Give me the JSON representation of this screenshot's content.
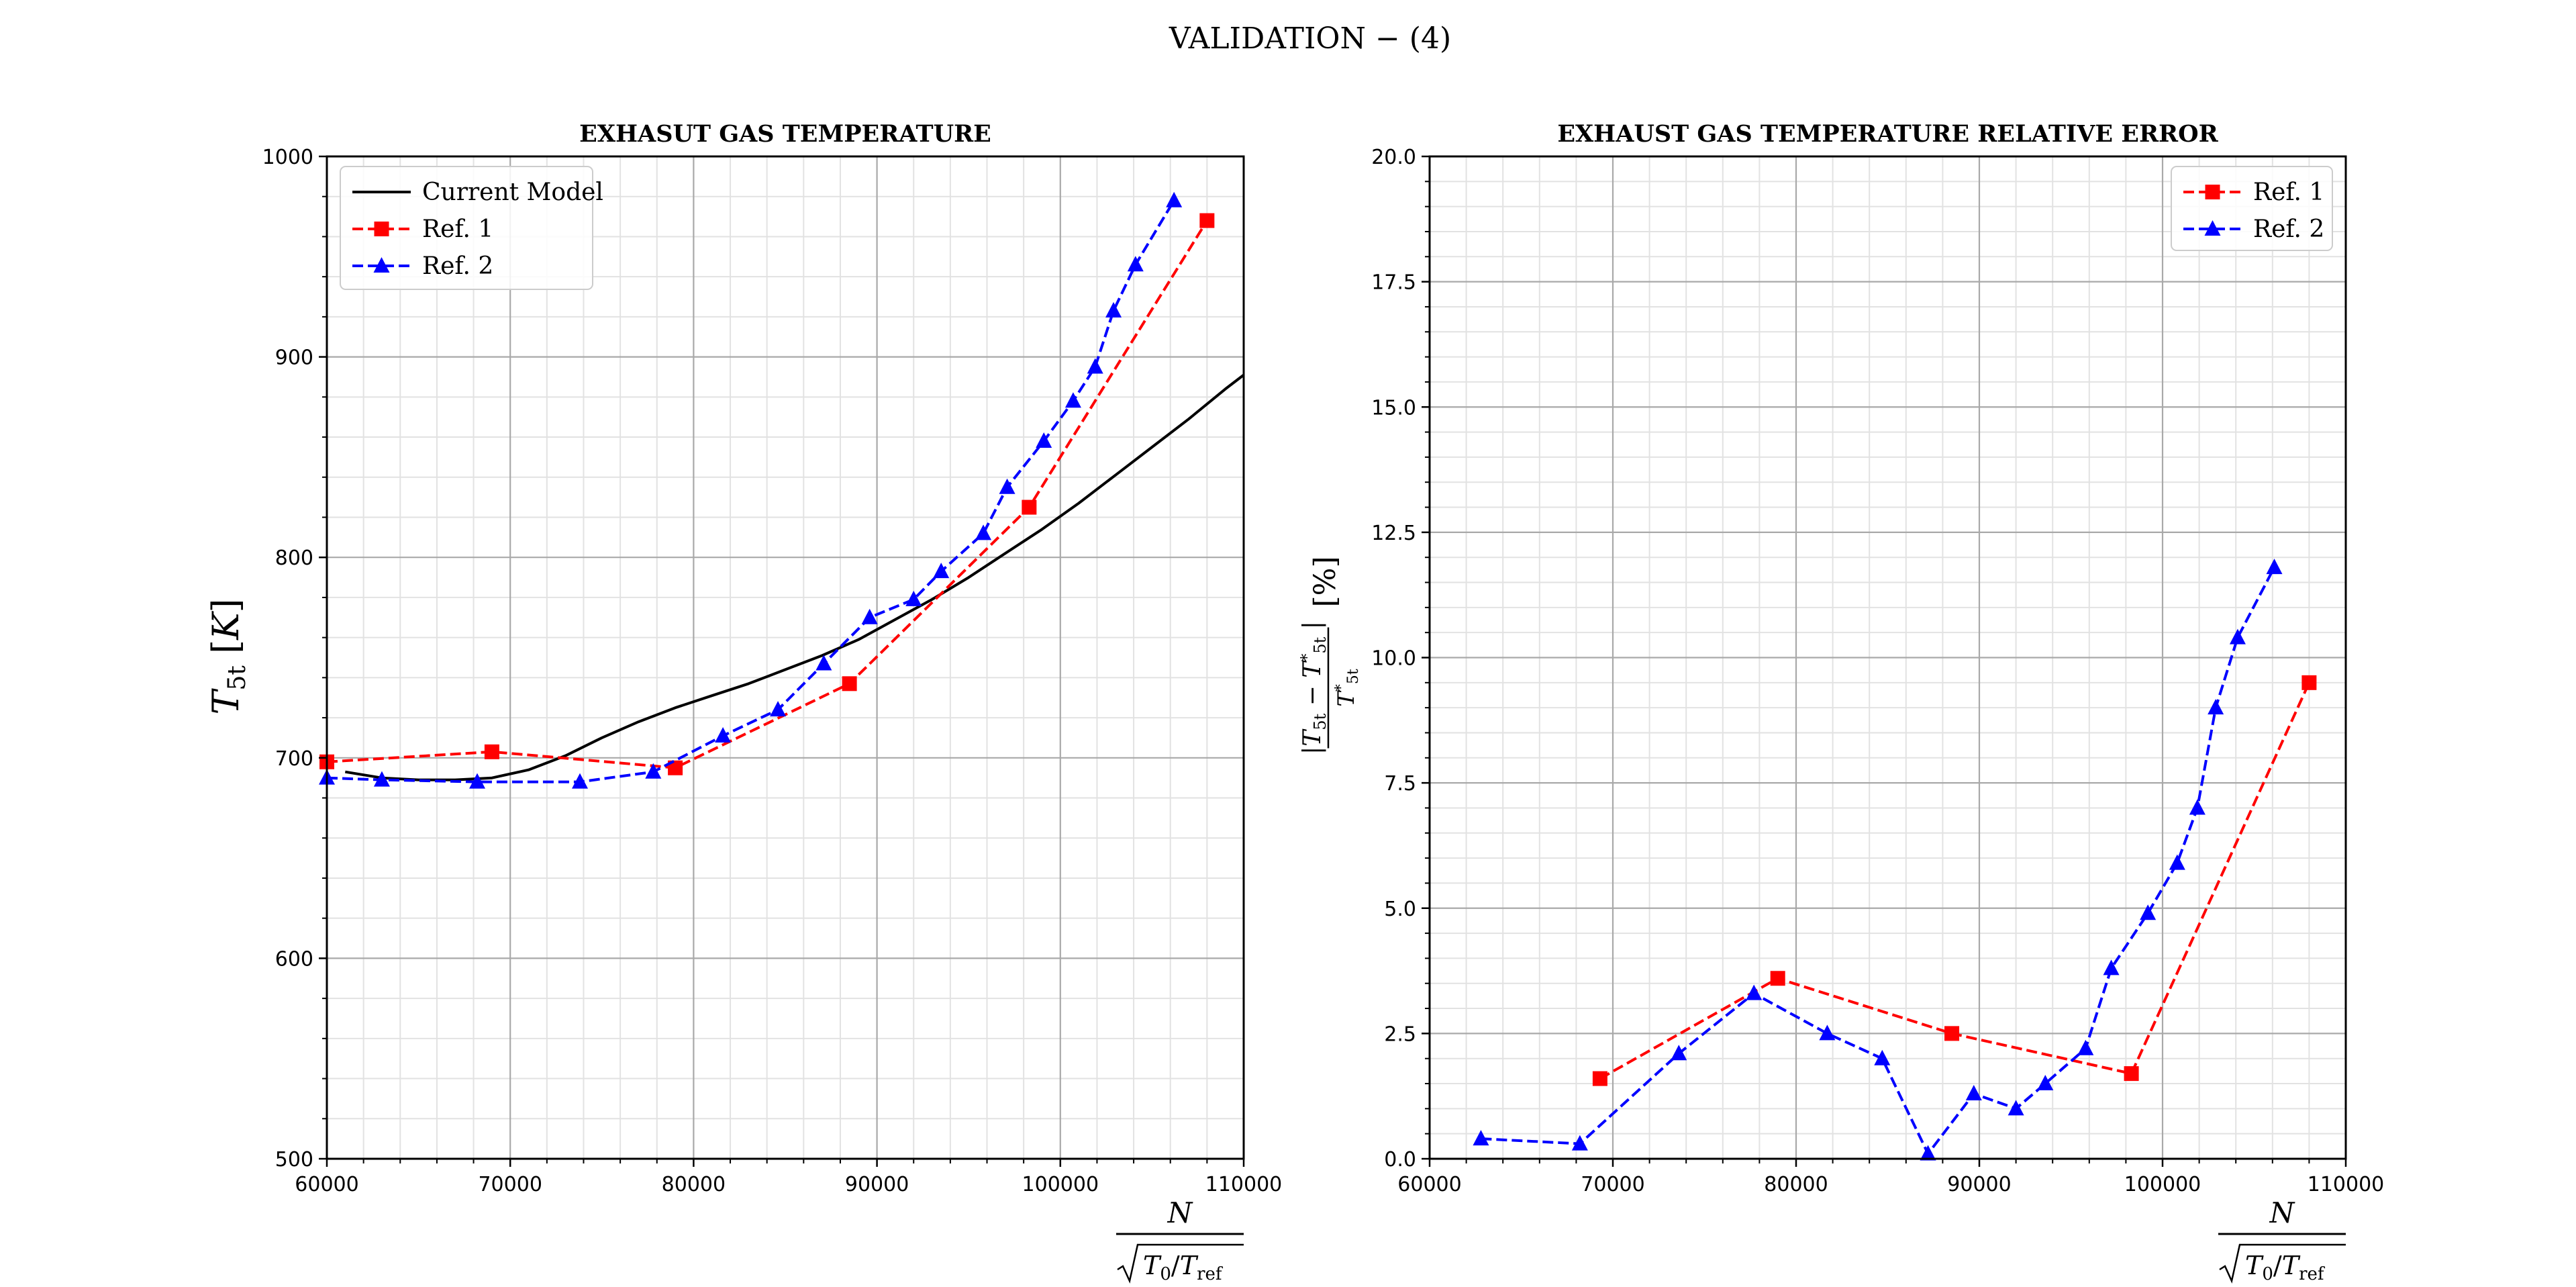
{
  "figure": {
    "title": "VALIDATION  − (4)"
  },
  "chart_data": [
    {
      "type": "line",
      "title": "EXHAUST GAS TEMPERATURE",
      "title_as_printed": "EXHASUT GAS TEMPERATURE",
      "xlabel": "N / √(T0/Tref)",
      "ylabel": "T5t [K]",
      "xlim": [
        60000,
        110000
      ],
      "ylim": [
        500,
        1000
      ],
      "x_ticks": [
        60000,
        70000,
        80000,
        90000,
        100000,
        110000
      ],
      "x_tick_labels": [
        "60000",
        "70000",
        "80000",
        "90000",
        "100000",
        "110000"
      ],
      "y_ticks": [
        500,
        600,
        700,
        800,
        900,
        1000
      ],
      "y_tick_labels": [
        "500",
        "600",
        "700",
        "800",
        "900",
        "1000"
      ],
      "grid": true,
      "legend": "top-left",
      "series": [
        {
          "name": "Current Model",
          "style": "solid",
          "marker": "none",
          "color": "#000000",
          "x": [
            61000,
            63000,
            65000,
            67000,
            69000,
            71000,
            73000,
            75000,
            77000,
            79000,
            81000,
            83000,
            85000,
            87000,
            89000,
            91000,
            93000,
            95000,
            97000,
            99000,
            101000,
            103000,
            105000,
            107000,
            109000,
            110000
          ],
          "y": [
            693,
            690,
            689,
            689,
            690,
            694,
            701,
            710,
            718,
            725,
            731,
            737,
            744,
            751,
            759,
            769,
            779,
            790,
            802,
            814,
            827,
            841,
            855,
            869,
            884,
            891
          ]
        },
        {
          "name": "Ref. 1",
          "style": "dashed",
          "marker": "square",
          "color": "#ff0000",
          "x": [
            60000,
            69000,
            79000,
            88500,
            98300,
            108000
          ],
          "y": [
            698,
            703,
            695,
            737,
            825,
            968
          ]
        },
        {
          "name": "Ref. 2",
          "style": "dashed",
          "marker": "triangle",
          "color": "#0000ff",
          "x": [
            60000,
            63000,
            68200,
            73800,
            77800,
            81600,
            84600,
            87100,
            89600,
            92000,
            93500,
            95800,
            97100,
            99100,
            100700,
            101900,
            102900,
            104100,
            106200
          ],
          "y": [
            690,
            689,
            688,
            688,
            693,
            711,
            724,
            747,
            770,
            779,
            793,
            812,
            835,
            858,
            878,
            895,
            923,
            946,
            978
          ]
        }
      ]
    },
    {
      "type": "line",
      "title": "EXHAUST GAS TEMPERATURE RELATIVE ERROR",
      "xlabel": "N / √(T0/Tref)",
      "ylabel": "|T5t − T*5t| / T*5t [%]",
      "xlim": [
        60000,
        110000
      ],
      "ylim": [
        0,
        20
      ],
      "x_ticks": [
        60000,
        70000,
        80000,
        90000,
        100000,
        110000
      ],
      "x_tick_labels": [
        "60000",
        "70000",
        "80000",
        "90000",
        "100000",
        "110000"
      ],
      "y_ticks": [
        0,
        2.5,
        5,
        7.5,
        10,
        12.5,
        15,
        17.5,
        20
      ],
      "y_tick_labels": [
        "0.0",
        "2.5",
        "5.0",
        "7.5",
        "10.0",
        "12.5",
        "15.0",
        "17.5",
        "20.0"
      ],
      "grid": true,
      "legend": "top-right",
      "series": [
        {
          "name": "Ref. 1",
          "style": "dashed",
          "marker": "square",
          "color": "#ff0000",
          "x": [
            69300,
            79000,
            88500,
            98300,
            108000
          ],
          "y": [
            1.6,
            3.6,
            2.5,
            1.7,
            9.5
          ]
        },
        {
          "name": "Ref. 2",
          "style": "dashed",
          "marker": "triangle",
          "color": "#0000ff",
          "x": [
            62800,
            68200,
            73600,
            77700,
            81700,
            84700,
            87200,
            89700,
            92000,
            93600,
            95800,
            97200,
            99200,
            100800,
            101900,
            102900,
            104100,
            106100
          ],
          "y": [
            0.4,
            0.3,
            2.1,
            3.3,
            2.5,
            2.0,
            0.1,
            1.3,
            1.0,
            1.5,
            2.2,
            3.8,
            4.9,
            5.9,
            7.0,
            9.0,
            10.4,
            11.8
          ]
        }
      ]
    }
  ]
}
